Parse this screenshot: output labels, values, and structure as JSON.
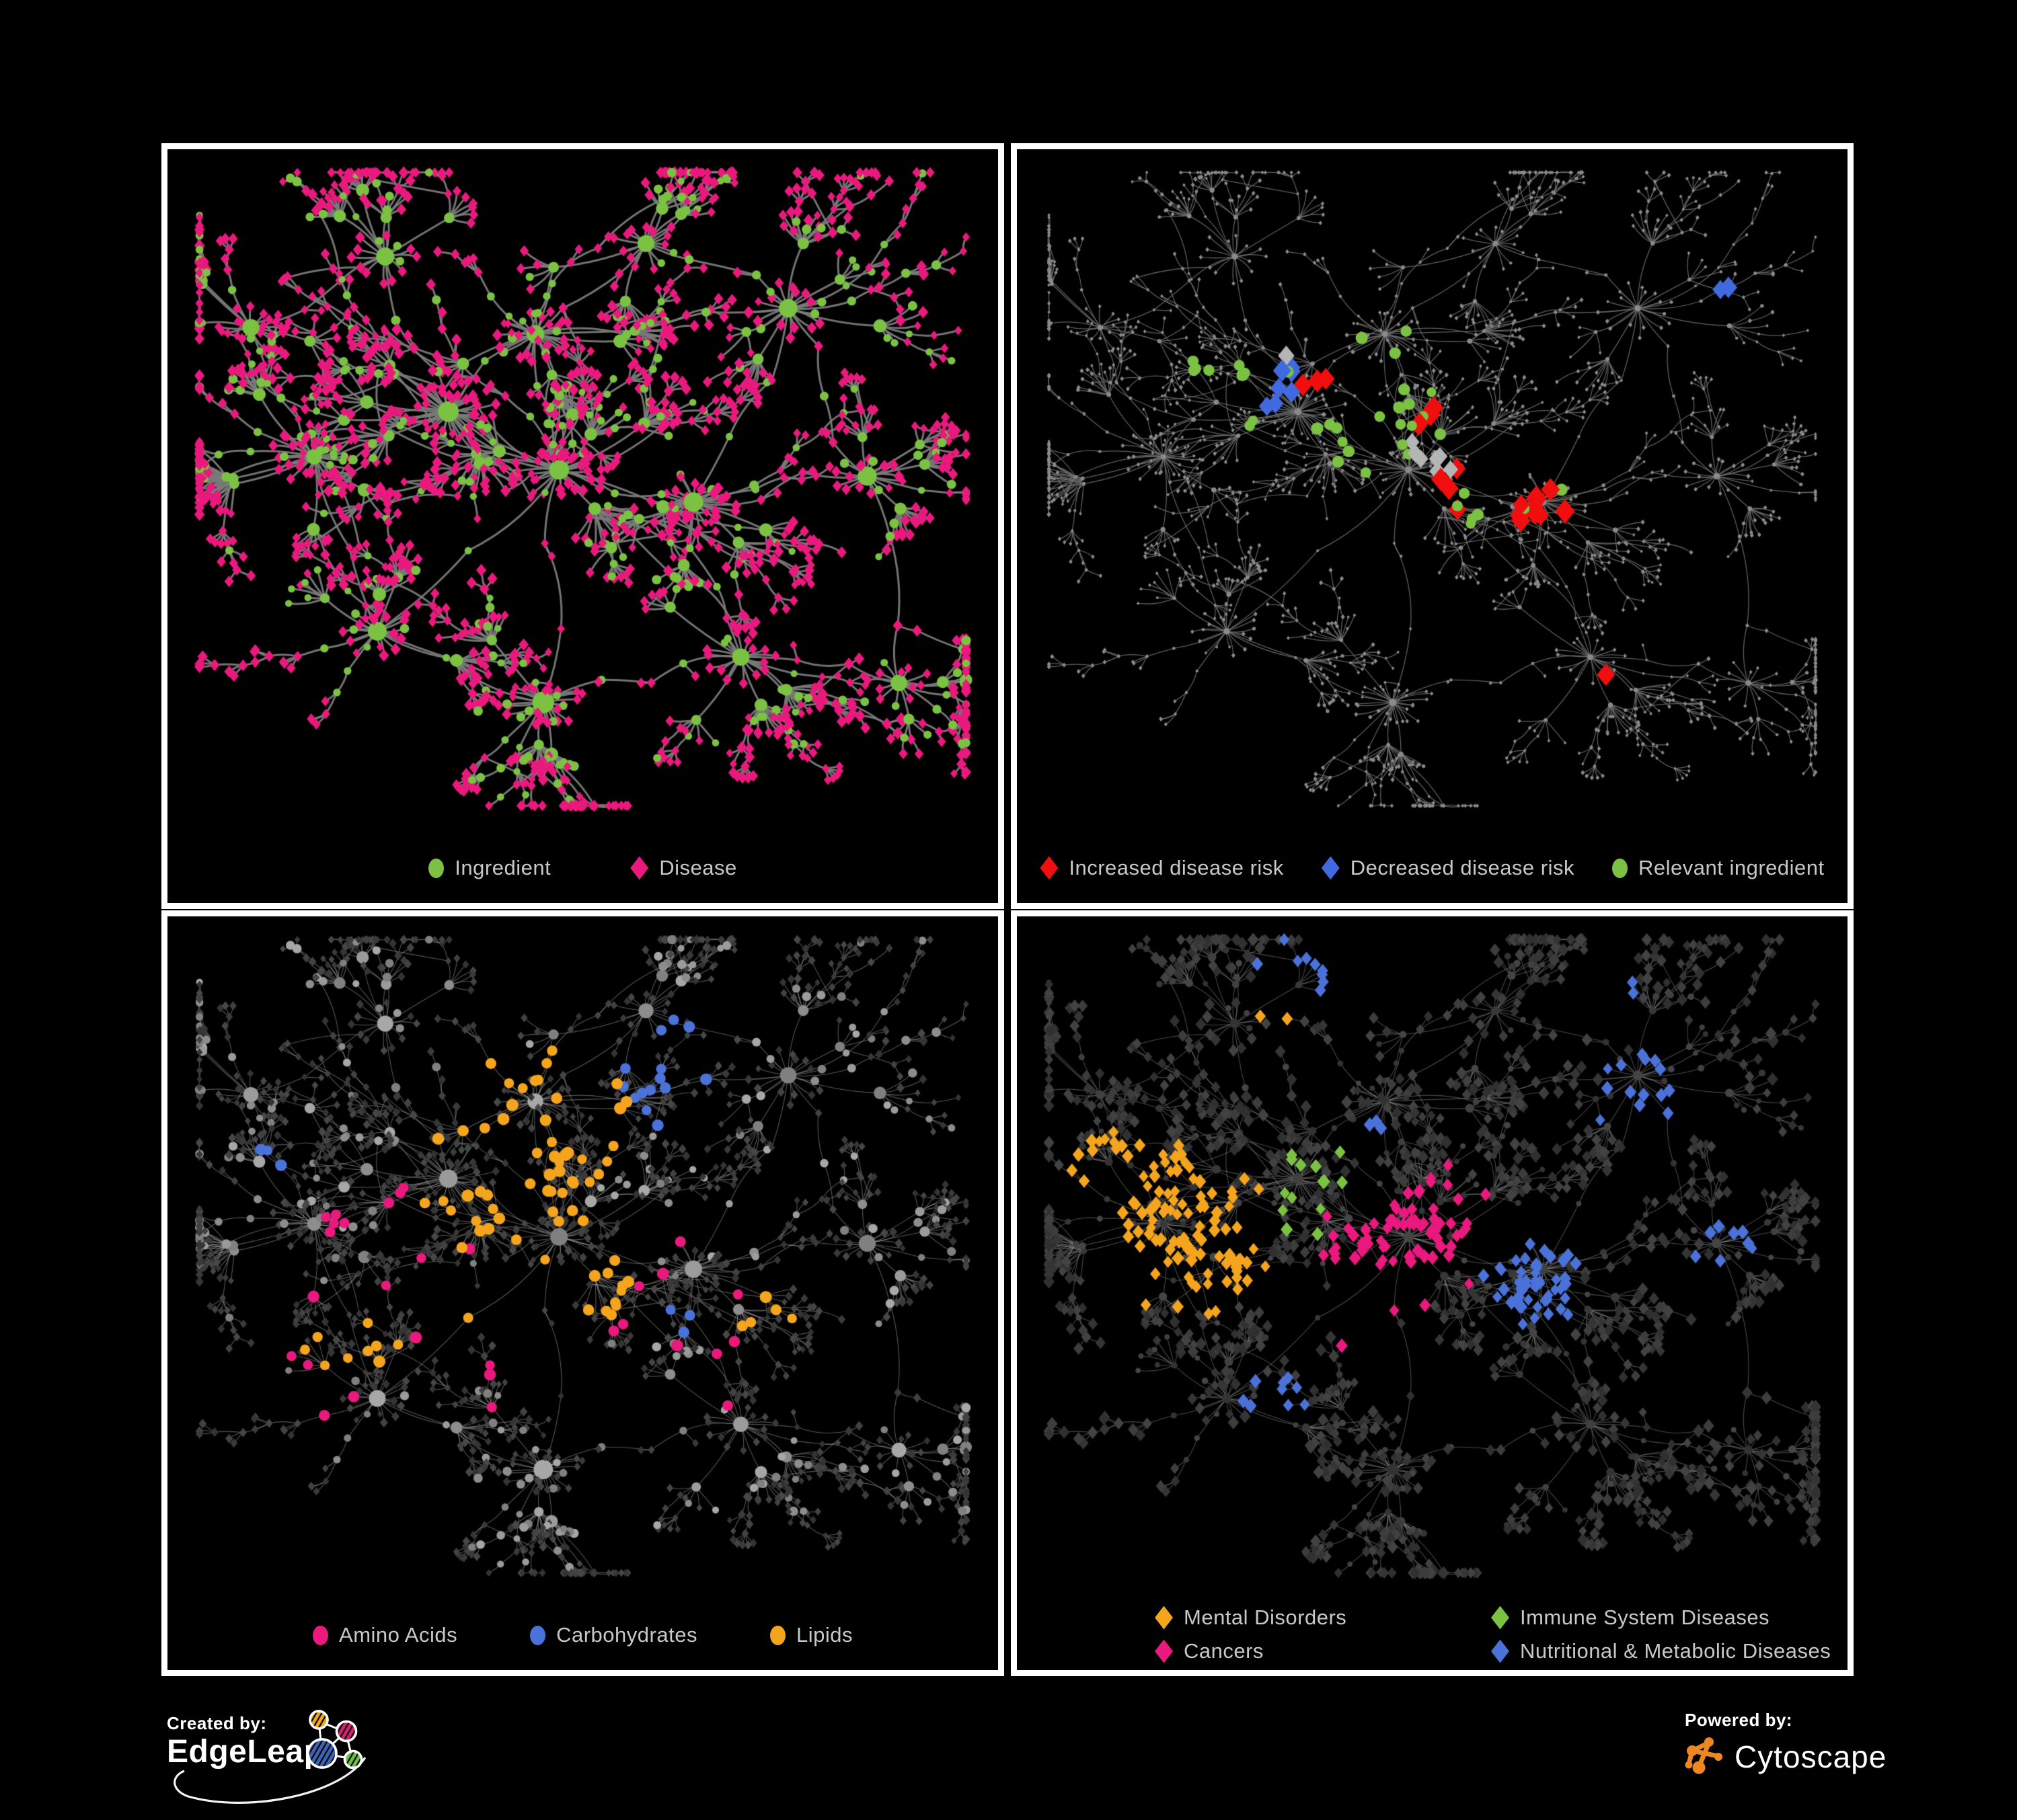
{
  "figure": {
    "background": "#000000",
    "panel_border_color": "#ffffff",
    "legend_text_color": "#c8c8c8"
  },
  "panels": [
    {
      "id": "ingredient-disease",
      "legend": [
        {
          "label": "Ingredient",
          "marker": "circle",
          "color": "#7CC242"
        },
        {
          "label": "Disease",
          "marker": "diamond",
          "color": "#E9197D"
        }
      ]
    },
    {
      "id": "disease-risk",
      "legend": [
        {
          "label": "Increased disease risk",
          "marker": "diamond",
          "color": "#F10E0E"
        },
        {
          "label": "Decreased disease risk",
          "marker": "diamond",
          "color": "#4169E0"
        },
        {
          "label": "Relevant ingredient",
          "marker": "circle",
          "color": "#7CC242"
        }
      ]
    },
    {
      "id": "nutrient-classes",
      "legend": [
        {
          "label": "Amino Acids",
          "marker": "circle",
          "color": "#E9197D"
        },
        {
          "label": "Carbohydrates",
          "marker": "circle",
          "color": "#4A72D8"
        },
        {
          "label": "Lipids",
          "marker": "circle",
          "color": "#F5A51D"
        }
      ]
    },
    {
      "id": "disease-classes",
      "legend": [
        {
          "label": "Mental Disorders",
          "marker": "diamond",
          "color": "#F5A51D"
        },
        {
          "label": "Immune System Diseases",
          "marker": "diamond",
          "color": "#7CC242"
        },
        {
          "label": "Cancers",
          "marker": "diamond",
          "color": "#E9197D"
        },
        {
          "label": "Nutritional & Metabolic Diseases",
          "marker": "diamond",
          "color": "#4A72D8"
        }
      ]
    }
  ],
  "footer": {
    "created_by_label": "Created by:",
    "created_by_name": "EdgeLeap",
    "powered_by_label": "Powered by:",
    "powered_by_name": "Cytoscape",
    "edgeleap_node_colors": [
      "#F2A71B",
      "#D4216E",
      "#3F62B5",
      "#6CBE45"
    ],
    "cytoscape_orange": "#EE8722"
  },
  "network": {
    "seed": 73,
    "leaf_diamond_prob": 0.78,
    "tendrils": 2,
    "extra_edges": 55,
    "margins": [
      30,
      25,
      30,
      135
    ],
    "clusters": [
      [
        0.16,
        0.45,
        0.045,
        30,
        6
      ],
      [
        0.33,
        0.38,
        0.05,
        34,
        6
      ],
      [
        0.47,
        0.47,
        0.05,
        30,
        6
      ],
      [
        0.44,
        0.26,
        0.045,
        26,
        5
      ],
      [
        0.64,
        0.52,
        0.045,
        26,
        5
      ],
      [
        0.24,
        0.72,
        0.04,
        18,
        4
      ],
      [
        0.45,
        0.83,
        0.042,
        30,
        3
      ],
      [
        0.76,
        0.22,
        0.045,
        18,
        5
      ],
      [
        0.86,
        0.48,
        0.04,
        16,
        4
      ],
      [
        0.25,
        0.14,
        0.04,
        14,
        4
      ],
      [
        0.7,
        0.76,
        0.04,
        16,
        4
      ],
      [
        0.58,
        0.12,
        0.04,
        14,
        4
      ],
      [
        0.08,
        0.25,
        0.035,
        12,
        3
      ],
      [
        0.9,
        0.8,
        0.035,
        12,
        3
      ]
    ],
    "links": [
      [
        0,
        1
      ],
      [
        1,
        2
      ],
      [
        2,
        3
      ],
      [
        3,
        1
      ],
      [
        2,
        4
      ],
      [
        4,
        8
      ],
      [
        7,
        8
      ],
      [
        3,
        7
      ],
      [
        1,
        9
      ],
      [
        0,
        12
      ],
      [
        5,
        0
      ],
      [
        6,
        2
      ],
      [
        6,
        5
      ],
      [
        10,
        4
      ],
      [
        10,
        6
      ],
      [
        11,
        3
      ],
      [
        11,
        7
      ],
      [
        13,
        8
      ],
      [
        13,
        10
      ],
      [
        9,
        12
      ],
      [
        2,
        5
      ],
      [
        4,
        7
      ]
    ],
    "styles": {
      "p1": {
        "edge": {
          "color": "#7A7A7A",
          "width": 3.0,
          "alpha": 0.95
        },
        "circle": {
          "color": "#7CC242",
          "r": [
            6.0,
            8.5,
            13.5
          ]
        },
        "diamond": {
          "color": "#E9197D",
          "size": 6.5
        }
      },
      "p2": {
        "edge": {
          "color": "#6E6E6E",
          "width": 1.3,
          "alpha": 0.85
        },
        "circle": {
          "color": "#8A8A8A",
          "r": [
            2.3,
            3.2,
            4.6
          ]
        },
        "diamond": {
          "color": "#8A8A8A",
          "size": 2.6
        },
        "groups": [
          {
            "shape": "d",
            "color": "#F10E0E",
            "size": 13,
            "count": 26,
            "spots": [
              [
                0.47,
                0.4,
                0.05
              ],
              [
                0.53,
                0.5,
                0.05
              ],
              [
                0.36,
                0.33,
                0.04
              ],
              [
                0.63,
                0.52,
                0.05
              ],
              [
                0.7,
                0.78,
                0.03
              ],
              [
                0.8,
                0.44,
                0.02
              ],
              [
                0.42,
                0.62,
                0.03
              ]
            ]
          },
          {
            "shape": "d",
            "color": "#4169E0",
            "size": 12,
            "count": 9,
            "spots": [
              [
                0.29,
                0.33,
                0.035
              ],
              [
                0.88,
                0.2,
                0.02
              ]
            ]
          },
          {
            "shape": "d",
            "color": "#B5B5B5",
            "size": 11,
            "count": 8,
            "spots": [
              [
                0.3,
                0.3,
                0.04
              ],
              [
                0.5,
                0.45,
                0.06
              ],
              [
                0.6,
                0.63,
                0.05
              ]
            ]
          },
          {
            "shape": "c",
            "color": "#7CC242",
            "size": 8,
            "count": 38,
            "spots": [
              [
                0.42,
                0.4,
                0.07
              ],
              [
                0.3,
                0.35,
                0.05
              ],
              [
                0.52,
                0.5,
                0.06
              ],
              [
                0.24,
                0.3,
                0.04
              ],
              [
                0.46,
                0.27,
                0.05
              ],
              [
                0.13,
                0.4,
                0.02
              ],
              [
                0.66,
                0.5,
                0.04
              ]
            ]
          }
        ]
      },
      "p3": {
        "edge": {
          "color": "#ABABAB",
          "width": 1.1,
          "alpha": 0.5
        },
        "circle": {
          "color": "#969696",
          "r": [
            5.8,
            8.0,
            12.0
          ],
          "shades": [
            "#8d8d8d",
            "#9b9b9b",
            "#a7a7a7",
            "#808080"
          ]
        },
        "diamond": {
          "color": "#3E3E3E",
          "size": 5.0,
          "shades": [
            "#3a3a3a",
            "#424242",
            "#343434",
            "#474747"
          ]
        },
        "groups": [
          {
            "shape": "c",
            "color": "#F5A51D",
            "size": 8,
            "count": 80,
            "spots": [
              [
                0.44,
                0.29,
                0.06
              ],
              [
                0.48,
                0.52,
                0.05
              ],
              [
                0.4,
                0.4,
                0.05
              ],
              [
                0.21,
                0.63,
                0.03
              ],
              [
                0.56,
                0.74,
                0.03
              ],
              [
                0.36,
                0.63,
                0.02
              ],
              [
                0.74,
                0.6,
                0.02
              ]
            ]
          },
          {
            "shape": "c",
            "color": "#4A72D8",
            "size": 8,
            "count": 24,
            "spots": [
              [
                0.57,
                0.21,
                0.045
              ],
              [
                0.12,
                0.33,
                0.012
              ],
              [
                0.47,
                0.75,
                0.015
              ],
              [
                0.6,
                0.6,
                0.015
              ]
            ]
          },
          {
            "shape": "c",
            "color": "#E9197D",
            "size": 8,
            "count": 30,
            "spots": [
              [
                0.3,
                0.55,
                0.25
              ],
              [
                0.62,
                0.6,
                0.18
              ]
            ]
          }
        ]
      },
      "p4": {
        "edge": {
          "color": "#9F9F9F",
          "width": 1.1,
          "alpha": 0.45
        },
        "circle": {
          "color": "#3A3A3A",
          "r": [
            4.4,
            5.5,
            7.0
          ],
          "shades": [
            "#383838",
            "#404040",
            "#333333",
            "#454545"
          ]
        },
        "diamond": {
          "color": "#363636",
          "size": 7.0,
          "shades": [
            "#353535",
            "#3d3d3d",
            "#303030",
            "#424242"
          ]
        },
        "groups": [
          {
            "shape": "d",
            "color": "#F5A51D",
            "size": 8,
            "count": 115,
            "spots": [
              [
                0.16,
                0.45,
                0.07
              ],
              [
                0.1,
                0.38,
                0.04
              ],
              [
                0.22,
                0.52,
                0.04
              ],
              [
                0.3,
                0.1,
                0.02
              ]
            ]
          },
          {
            "shape": "d",
            "color": "#E9197D",
            "size": 8,
            "count": 75,
            "spots": [
              [
                0.45,
                0.5,
                0.07
              ],
              [
                0.52,
                0.42,
                0.04
              ],
              [
                0.4,
                0.6,
                0.04
              ],
              [
                0.91,
                0.33,
                0.025
              ],
              [
                0.96,
                0.62,
                0.015
              ]
            ]
          },
          {
            "shape": "d",
            "color": "#4A72D8",
            "size": 8,
            "count": 95,
            "spots": [
              [
                0.62,
                0.55,
                0.05
              ],
              [
                0.79,
                0.24,
                0.06
              ],
              [
                0.33,
                0.07,
                0.04
              ],
              [
                0.73,
                0.08,
                0.03
              ],
              [
                0.52,
                0.88,
                0.03
              ],
              [
                0.3,
                0.72,
                0.03
              ],
              [
                0.87,
                0.48,
                0.03
              ],
              [
                0.42,
                0.3,
                0.02
              ]
            ]
          },
          {
            "shape": "d",
            "color": "#7CC242",
            "size": 8,
            "count": 14,
            "spots": [
              [
                0.35,
                0.4,
                0.12
              ],
              [
                0.6,
                0.55,
                0.08
              ]
            ]
          }
        ]
      }
    }
  }
}
